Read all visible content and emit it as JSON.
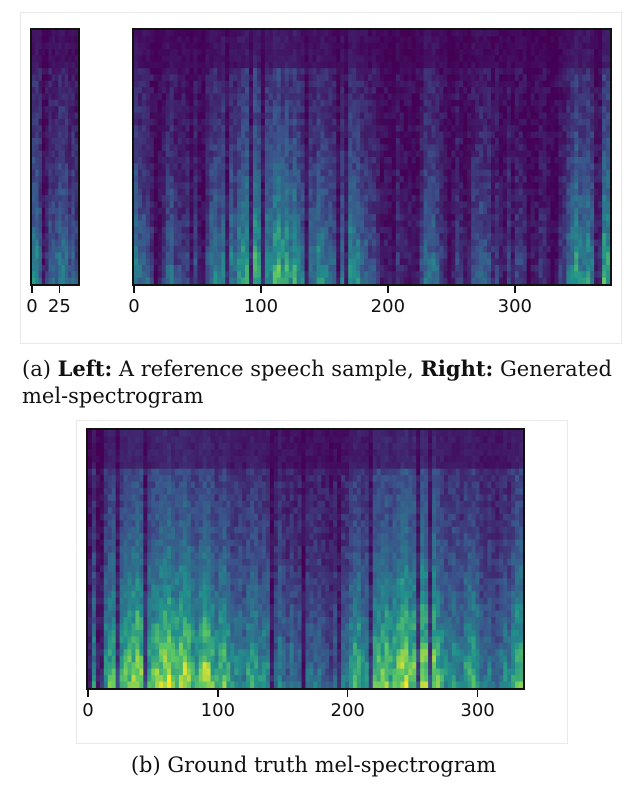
{
  "figure_a": {
    "reference_panel": {
      "x_ticks": [
        {
          "value": 0,
          "label": "0"
        },
        {
          "value": 25,
          "label": "25"
        }
      ],
      "x_range": [
        0,
        42
      ]
    },
    "generated_panel": {
      "x_ticks": [
        {
          "value": 0,
          "label": "0"
        },
        {
          "value": 100,
          "label": "100"
        },
        {
          "value": 200,
          "label": "200"
        },
        {
          "value": 300,
          "label": "300"
        }
      ],
      "x_range": [
        0,
        375
      ]
    },
    "caption": {
      "prefix": "(a) ",
      "left_label": "Left:",
      "left_text": " A reference speech sample, ",
      "right_label": "Right:",
      "right_text": " Generated",
      "line2": "mel-spectrogram"
    }
  },
  "figure_b": {
    "ground_truth_panel": {
      "x_ticks": [
        {
          "value": 0,
          "label": "0"
        },
        {
          "value": 100,
          "label": "100"
        },
        {
          "value": 200,
          "label": "200"
        },
        {
          "value": 300,
          "label": "300"
        }
      ],
      "x_range": [
        0,
        335
      ]
    },
    "caption": "(b) Ground truth mel-spectrogram"
  },
  "colors": {
    "low": "#3b1d6a",
    "mid": "#2a8c8c",
    "high": "#f2e51a"
  }
}
